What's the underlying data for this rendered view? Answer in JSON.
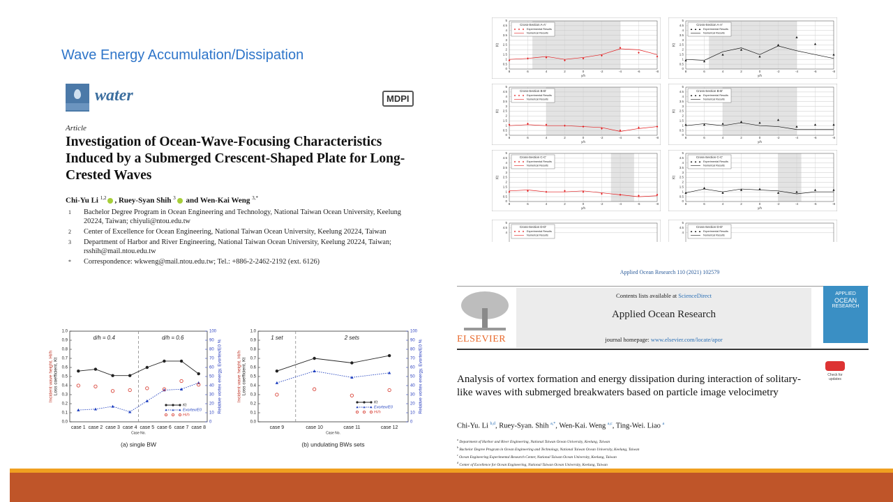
{
  "slide": {
    "title": "Wave Energy Accumulation/Dissipation"
  },
  "paper1": {
    "journal": "water",
    "publisher": "MDPI",
    "type": "Article",
    "title": "Investigation of Ocean-Wave-Focusing Characteristics Induced by a Submerged Crescent-Shaped Plate for Long-Crested Waves",
    "authors": [
      {
        "name": "Chi-Yu Li",
        "sup": "1,2"
      },
      {
        "name": "Ruey-Syan Shih",
        "sup": "3"
      },
      {
        "name": "Wen-Kai Weng",
        "sup": "3,*"
      }
    ],
    "conjunction": "and",
    "affiliations": [
      {
        "mark": "1",
        "text": "Bachelor Degree Program in Ocean Engineering and Technology, National Taiwan Ocean University, Keelung 20224, Taiwan; chiyuli@ntou.edu.tw"
      },
      {
        "mark": "2",
        "text": "Center of Excellence for Ocean Engineering, National Taiwan Ocean University, Keelung 20224, Taiwan"
      },
      {
        "mark": "3",
        "text": "Department of Harbor and River Engineering, National Taiwan Ocean University, Keelung 20224, Taiwan; rsshih@mail.ntou.edu.tw"
      },
      {
        "mark": "*",
        "text": "Correspondence: wkweng@mail.ntou.edu.tw; Tel.: +886-2-2462-2192 (ext. 6126)"
      }
    ]
  },
  "paper2": {
    "reference": "Applied Ocean Research 110 (2021) 102579",
    "contents": "Contents lists available at ",
    "contents_link": "ScienceDirect",
    "journal": "Applied Ocean Research",
    "homepage": "journal homepage: ",
    "homepage_link": "www.elsevier.com/locate/apor",
    "publisher": "ELSEVIER",
    "cover": [
      "APPLIED",
      "OCEAN",
      "RESEARCH"
    ],
    "check": "Check for updates",
    "title": "Analysis of vortex formation and energy dissipation during interaction of solitary-like waves with submerged breakwaters based on particle image velocimetry",
    "authors": [
      {
        "name": "Chi-Yu. Li",
        "sup": "b,d"
      },
      {
        "name": "Ruey-Syan. Shih",
        "sup": "a,*"
      },
      {
        "name": "Wen-Kai. Weng",
        "sup": "a,c"
      },
      {
        "name": "Ting-Wei. Liao",
        "sup": "a"
      }
    ],
    "affiliations": [
      {
        "mark": "a",
        "text": "Department of Harbor and River Engineering, National Taiwan Ocean University, Keelung, Taiwan"
      },
      {
        "mark": "b",
        "text": "Bachelor Degree Program in Ocean Engineering and Technology, National Taiwan Ocean University, Keelung, Taiwan"
      },
      {
        "mark": "c",
        "text": "Ocean Engineering Experimental Research Center, National Taiwan Ocean University, Keelung, Taiwan"
      },
      {
        "mark": "d",
        "text": "Center of Excellence for Ocean Engineering, National Taiwan Ocean University, Keelung, Taiwan"
      }
    ]
  },
  "chart_data": [
    {
      "type": "line",
      "caption": "(a) single BW",
      "xlabel": "Case No.",
      "ylabel": [
        "Incident wave height, Hi/h",
        "Loss coefficient, Kt"
      ],
      "y2label": "Relative vortex energy, Evortex/E0 %",
      "annotations": [
        "d/h = 0.4",
        "d/h = 0.6"
      ],
      "categories": [
        "case 1",
        "case 2",
        "case 3",
        "case 4",
        "case 5",
        "case 6",
        "case 7",
        "case 8"
      ],
      "ylim": [
        0,
        1
      ],
      "yticks": [
        {
          "value": 0,
          "label": "0.0"
        },
        0.1,
        0.2,
        0.3,
        0.4,
        0.5,
        0.6,
        0.7,
        0.8,
        0.9,
        {
          "value": 1,
          "label": "1.0"
        }
      ],
      "y2lim": [
        0,
        100
      ],
      "y2ticks": [
        0,
        10,
        20,
        30,
        40,
        50,
        60,
        70,
        80,
        90,
        100
      ],
      "series": [
        {
          "name": "Kt",
          "color": "#222222",
          "line": "solid",
          "marker": "dot",
          "values": [
            0.56,
            0.58,
            0.51,
            0.51,
            0.6,
            0.67,
            0.67,
            0.53
          ]
        },
        {
          "name": "Evortex/E0",
          "color": "#1f3fbf",
          "line": "dotted",
          "marker": "triangle",
          "axis": "y2",
          "values": [
            13,
            14,
            17,
            11,
            23,
            35,
            36,
            43
          ]
        },
        {
          "name": "Hi/h",
          "color": "#d9453a",
          "line": "none",
          "marker": "ring",
          "values": [
            0.4,
            0.39,
            0.34,
            0.35,
            0.37,
            0.36,
            0.45,
            0.41
          ]
        }
      ]
    },
    {
      "type": "line",
      "caption": "(b) undulating BWs sets",
      "xlabel": "Case No.",
      "ylabel": [
        "Incident wave height, Hi/h",
        "Loss coefficient, Kt"
      ],
      "y2label": "Relative vortex energy, Evortex/E0 %",
      "annotations": [
        "1 set",
        "2 sets"
      ],
      "categories": [
        "case 9",
        "case 10",
        "case 11",
        "case 12"
      ],
      "ylim": [
        0,
        1
      ],
      "yticks": [
        {
          "value": 0,
          "label": "0.0"
        },
        0.1,
        0.2,
        0.3,
        0.4,
        0.5,
        0.6,
        0.7,
        0.8,
        0.9,
        {
          "value": 1,
          "label": "1.0"
        }
      ],
      "y2lim": [
        0,
        100
      ],
      "y2ticks": [
        0,
        10,
        20,
        30,
        40,
        50,
        60,
        70,
        80,
        90,
        100
      ],
      "series": [
        {
          "name": "Kt",
          "color": "#222222",
          "line": "solid",
          "marker": "dot",
          "values": [
            0.56,
            0.7,
            0.65,
            0.73
          ]
        },
        {
          "name": "Evortex/E0",
          "color": "#1f3fbf",
          "line": "dotted",
          "marker": "triangle",
          "axis": "y2",
          "values": [
            43,
            56,
            49,
            54
          ]
        },
        {
          "name": "Hi/h",
          "color": "#d9453a",
          "line": "none",
          "marker": "ring",
          "values": [
            0.3,
            0.36,
            0.29,
            0.35
          ]
        }
      ]
    },
    {
      "type": "profile",
      "title": "Cross-Section A-A'",
      "xlabel": "y/h",
      "ylabel": "Kt",
      "xlim": [
        8,
        -8
      ],
      "xticks": [
        8,
        6,
        4,
        2,
        0,
        -2,
        -4,
        -6,
        -8
      ],
      "ylim": [
        0,
        5
      ],
      "yticks": [
        0,
        0.5,
        1,
        1.5,
        2,
        2.5,
        3,
        3.5,
        4,
        4.5,
        5
      ],
      "shade": [
        5.5,
        -4
      ],
      "x": [
        8,
        6,
        4,
        2,
        0,
        -2,
        -4,
        -6,
        -8
      ],
      "series": [
        {
          "name": "Experimental Results",
          "color": "#e31a1c",
          "marker": "diamond",
          "values": [
            0.9,
            1.1,
            1.2,
            0.9,
            1.1,
            1.4,
            2.2,
            1.7,
            1.3
          ]
        },
        {
          "name": "Numerical Results",
          "color": "#e31a1c",
          "line": "solid",
          "values": [
            1,
            1.1,
            1.3,
            1,
            1.2,
            1.5,
            2.1,
            2,
            1.5
          ]
        }
      ]
    },
    {
      "type": "profile",
      "title": "Cross-Section A-A'",
      "xlabel": "y/h",
      "ylabel": "Kt",
      "xlim": [
        8,
        -8
      ],
      "xticks": [
        8,
        6,
        4,
        2,
        0,
        -2,
        -4,
        -6,
        -8
      ],
      "ylim": [
        0,
        5
      ],
      "yticks": [
        0,
        0.5,
        1,
        1.5,
        2,
        2.5,
        3,
        3.5,
        4,
        4.5,
        5
      ],
      "shade": [
        5.5,
        -4
      ],
      "x": [
        8,
        6,
        4,
        2,
        0,
        -2,
        -4,
        -6,
        -8
      ],
      "series": [
        {
          "name": "Experimental Results",
          "color": "#111111",
          "marker": "triangle",
          "values": [
            0.9,
            0.8,
            1.5,
            2,
            1.3,
            2.5,
            3.3,
            2.6,
            1.5
          ]
        },
        {
          "name": "Numerical Results",
          "color": "#111111",
          "line": "solid",
          "values": [
            1,
            0.9,
            1.8,
            2.2,
            1.5,
            2.4,
            1.9,
            1.5,
            1.1
          ]
        }
      ]
    },
    {
      "type": "profile",
      "title": "Cross-Section B-B'",
      "xlabel": "y/h",
      "ylabel": "Kt",
      "xlim": [
        8,
        -8
      ],
      "xticks": [
        8,
        6,
        4,
        2,
        0,
        -2,
        -4,
        -6,
        -8
      ],
      "ylim": [
        0,
        5
      ],
      "yticks": [
        0,
        0.5,
        1,
        1.5,
        2,
        2.5,
        3,
        3.5,
        4,
        4.5,
        5
      ],
      "shade": [
        4,
        -4
      ],
      "x": [
        8,
        6,
        4,
        2,
        0,
        -2,
        -4,
        -6,
        -8
      ],
      "series": [
        {
          "name": "Experimental Results",
          "color": "#e31a1c",
          "marker": "diamond",
          "values": [
            1.1,
            1.2,
            1.1,
            1,
            0.9,
            0.7,
            0.5,
            0.8,
            0.9
          ]
        },
        {
          "name": "Numerical Results",
          "color": "#e31a1c",
          "line": "solid",
          "values": [
            1,
            1.1,
            1,
            1,
            0.9,
            0.8,
            0.4,
            0.7,
            0.9
          ]
        }
      ]
    },
    {
      "type": "profile",
      "title": "Cross-Section B-B'",
      "xlabel": "y/h",
      "ylabel": "Kt",
      "xlim": [
        8,
        -8
      ],
      "xticks": [
        8,
        6,
        4,
        2,
        0,
        -2,
        -4,
        -6,
        -8
      ],
      "ylim": [
        0,
        5
      ],
      "yticks": [
        0,
        0.5,
        1,
        1.5,
        2,
        2.5,
        3,
        3.5,
        4,
        4.5,
        5
      ],
      "shade": [
        4,
        -4
      ],
      "x": [
        8,
        6,
        4,
        2,
        0,
        -2,
        -4,
        -6,
        -8
      ],
      "series": [
        {
          "name": "Experimental Results",
          "color": "#111111",
          "marker": "triangle",
          "values": [
            1.1,
            1.1,
            1.2,
            1.4,
            1.3,
            1.6,
            0.9,
            1.1,
            1.1
          ]
        },
        {
          "name": "Numerical Results",
          "color": "#111111",
          "line": "solid",
          "values": [
            1,
            1.2,
            1,
            1.3,
            1,
            0.9,
            0.6,
            0.6,
            0.6
          ]
        }
      ]
    },
    {
      "type": "profile",
      "title": "Cross-Section C-C'",
      "xlabel": "y/h",
      "ylabel": "Kt",
      "xlim": [
        8,
        -8
      ],
      "xticks": [
        8,
        6,
        4,
        2,
        0,
        -2,
        -4,
        -6,
        -8
      ],
      "ylim": [
        0,
        5
      ],
      "yticks": [
        0,
        0.5,
        1,
        1.5,
        2,
        2.5,
        3,
        3.5,
        4,
        4.5,
        5
      ],
      "shade": [
        -3,
        -5.5
      ],
      "x": [
        8,
        6,
        4,
        2,
        0,
        -2,
        -4,
        -6,
        -8
      ],
      "series": [
        {
          "name": "Experimental Results",
          "color": "#e31a1c",
          "marker": "diamond",
          "values": [
            1,
            1.1,
            1,
            1.1,
            1,
            0.8,
            0.7,
            0.6,
            0.7
          ]
        },
        {
          "name": "Numerical Results",
          "color": "#e31a1c",
          "line": "solid",
          "values": [
            1.1,
            1.2,
            1,
            1,
            1.1,
            0.9,
            0.7,
            0.5,
            0.6
          ]
        }
      ]
    },
    {
      "type": "profile",
      "title": "Cross-Section C-C'",
      "xlabel": "y/h",
      "ylabel": "Kt",
      "xlim": [
        8,
        -8
      ],
      "xticks": [
        8,
        6,
        4,
        2,
        0,
        -2,
        -4,
        -6,
        -8
      ],
      "ylim": [
        0,
        5
      ],
      "yticks": [
        0,
        0.5,
        1,
        1.5,
        2,
        2.5,
        3,
        3.5,
        4,
        4.5,
        5
      ],
      "shade": [
        -2,
        -4.5
      ],
      "x": [
        8,
        6,
        4,
        2,
        0,
        -2,
        -4,
        -6,
        -8
      ],
      "series": [
        {
          "name": "Experimental Results",
          "color": "#111111",
          "marker": "triangle",
          "values": [
            0.9,
            1.4,
            0.9,
            1.2,
            1.3,
            0.9,
            1,
            1.2,
            1.2
          ]
        },
        {
          "name": "Numerical Results",
          "color": "#111111",
          "line": "solid",
          "values": [
            0.9,
            1.3,
            1,
            1.3,
            1.2,
            1.1,
            0.8,
            1,
            1
          ]
        }
      ]
    },
    {
      "type": "profile",
      "title": "Cross-Section D-D'",
      "ylim": [
        0,
        5
      ],
      "yticks": [
        4,
        4.5,
        5
      ],
      "series": [
        {
          "name": "Experimental Results",
          "color": "#e31a1c",
          "marker": "diamond",
          "values": []
        },
        {
          "name": "Numerical Results",
          "color": "#e31a1c",
          "line": "solid",
          "values": []
        }
      ]
    },
    {
      "type": "profile",
      "title": "Cross-Section D-D'",
      "ylim": [
        0,
        5
      ],
      "yticks": [
        4,
        4.5,
        5
      ],
      "series": [
        {
          "name": "Experimental Results",
          "color": "#111111",
          "marker": "triangle",
          "values": []
        },
        {
          "name": "Numerical Results",
          "color": "#111111",
          "line": "solid",
          "values": []
        }
      ]
    }
  ]
}
